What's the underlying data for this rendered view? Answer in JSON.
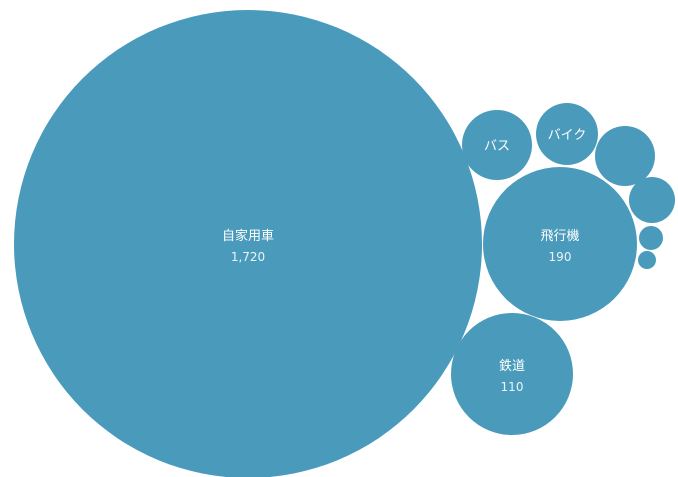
{
  "chart_data": {
    "type": "bubble",
    "color": "#4a9bbb",
    "background": "#ffffff",
    "bubbles": [
      {
        "name": "自家用車",
        "value": "1,720",
        "show_label": true,
        "show_value": true
      },
      {
        "name": "飛行機",
        "value": "190",
        "show_label": true,
        "show_value": true
      },
      {
        "name": "鉄道",
        "value": "110",
        "show_label": true,
        "show_value": true
      },
      {
        "name": "バス",
        "show_label": true,
        "show_value": false
      },
      {
        "name": "バイク",
        "show_label": true,
        "show_value": false
      },
      {
        "name": "",
        "show_label": false,
        "show_value": false
      },
      {
        "name": "",
        "show_label": false,
        "show_value": false
      },
      {
        "name": "",
        "show_label": false,
        "show_value": false
      },
      {
        "name": "",
        "show_label": false,
        "show_value": false
      }
    ]
  }
}
